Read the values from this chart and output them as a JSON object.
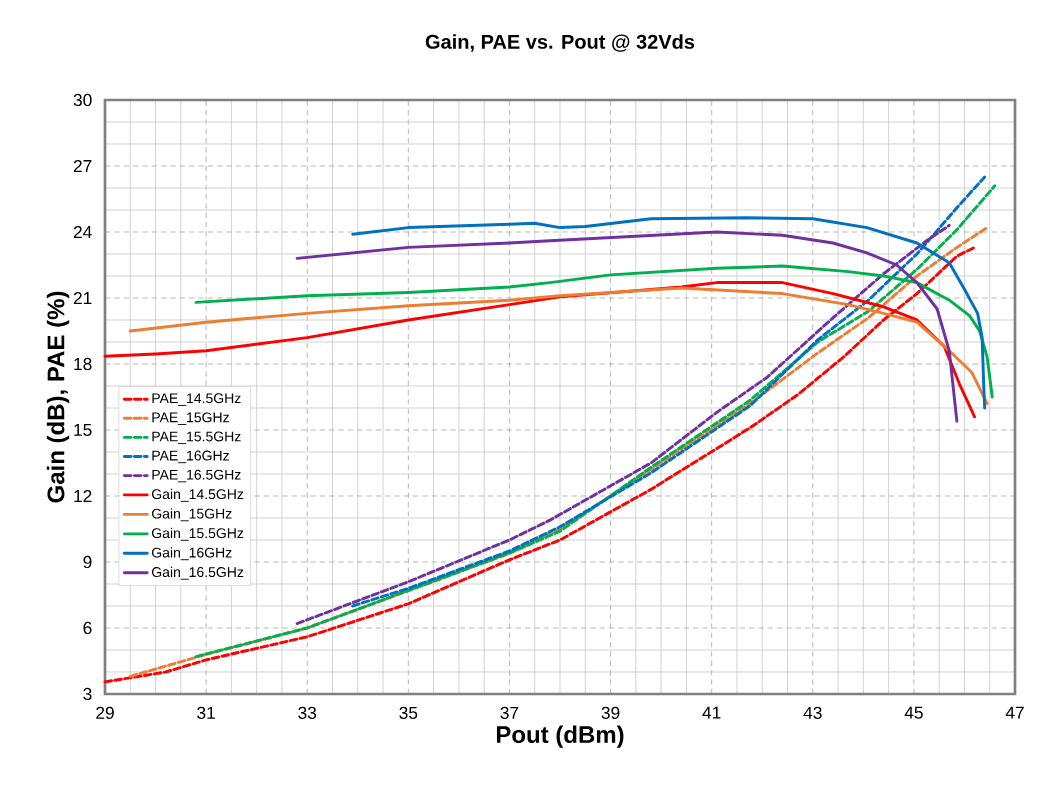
{
  "chart_data": {
    "type": "line",
    "title": "Gain, PAE vs. Pout @ 32Vds",
    "xlabel": "Pout (dBm)",
    "ylabel": "Gain (dB),  PAE (%)",
    "xlim": [
      29,
      47
    ],
    "ylim": [
      3,
      30
    ],
    "xticks": [
      29,
      31,
      33,
      35,
      37,
      39,
      41,
      43,
      45,
      47
    ],
    "yticks": [
      3,
      6,
      9,
      12,
      15,
      18,
      21,
      24,
      27,
      30
    ],
    "grid": true,
    "legend": "left",
    "series": [
      {
        "name": "PAE_14.5GHz",
        "color": "#ff0000",
        "line_style": "dashed",
        "x": [
          29,
          30.2,
          31,
          33,
          35,
          37,
          38,
          39.8,
          41.2,
          41.76,
          42.7,
          43.6,
          44.4,
          45.06,
          45.85,
          46.2
        ],
        "values": [
          3.55,
          4.0,
          4.55,
          5.6,
          7.1,
          9.1,
          10.0,
          12.3,
          14.3,
          15.1,
          16.6,
          18.3,
          20.0,
          21.2,
          22.9,
          23.3
        ]
      },
      {
        "name": "PAE_15GHz",
        "color": "#ed7d31",
        "line_style": "dashed",
        "x": [
          29.5,
          31,
          33,
          35,
          37,
          38,
          39.8,
          41.76,
          43.1,
          44.1,
          45.06,
          45.85,
          46.45
        ],
        "values": [
          3.8,
          4.8,
          6.0,
          7.7,
          9.4,
          10.5,
          13.2,
          16.2,
          18.5,
          20.1,
          22.0,
          23.3,
          24.2
        ]
      },
      {
        "name": "PAE_15.5GHz",
        "color": "#00b050",
        "line_style": "dashed",
        "x": [
          30.8,
          33,
          35,
          37,
          38,
          39.8,
          41.76,
          43.1,
          44.1,
          45.06,
          45.85,
          46.6
        ],
        "values": [
          4.7,
          6.0,
          7.7,
          9.4,
          10.4,
          13.3,
          16.35,
          19.0,
          20.4,
          22.3,
          24.1,
          26.1
        ]
      },
      {
        "name": "PAE_16GHz",
        "color": "#0070c0",
        "line_style": "dashed",
        "x": [
          33.9,
          35,
          37,
          38,
          39.8,
          41.76,
          43.1,
          44.1,
          45.06,
          45.85,
          46.4
        ],
        "values": [
          7.0,
          7.8,
          9.5,
          10.6,
          13.05,
          16.1,
          19.1,
          20.9,
          23.0,
          25.1,
          26.5
        ]
      },
      {
        "name": "PAE_16.5GHz",
        "color": "#7030a0",
        "line_style": "dashed",
        "x": [
          32.8,
          35,
          37,
          37.8,
          39.8,
          41.1,
          42.1,
          43.4,
          44.4,
          45.25,
          45.7
        ],
        "values": [
          6.2,
          8.1,
          10.0,
          10.9,
          13.5,
          15.8,
          17.4,
          20.1,
          22.1,
          23.6,
          24.3
        ]
      },
      {
        "name": "Gain_14.5GHz",
        "color": "#ff0000",
        "line_style": "solid",
        "x": [
          29,
          30,
          31,
          33,
          35,
          37,
          38,
          40.4,
          41.1,
          42.4,
          43.4,
          44.4,
          45.06,
          45.6,
          45.9,
          46.2
        ],
        "values": [
          18.35,
          18.45,
          18.6,
          19.2,
          20.0,
          20.7,
          21.05,
          21.5,
          21.7,
          21.7,
          21.2,
          20.6,
          20.0,
          18.8,
          17.1,
          15.6
        ]
      },
      {
        "name": "Gain_15GHz",
        "color": "#ed7d31",
        "line_style": "solid",
        "x": [
          29.5,
          31,
          33,
          35,
          37,
          38,
          40.4,
          42.4,
          43.7,
          44.4,
          45.06,
          45.7,
          46.15,
          46.45
        ],
        "values": [
          19.5,
          19.9,
          20.3,
          20.65,
          20.9,
          21.1,
          21.45,
          21.2,
          20.7,
          20.3,
          19.9,
          18.6,
          17.6,
          16.2
        ]
      },
      {
        "name": "Gain_15.5GHz",
        "color": "#00b050",
        "line_style": "solid",
        "x": [
          30.8,
          33,
          35,
          37,
          37.8,
          39,
          41.1,
          42.4,
          43.7,
          44.4,
          45.06,
          45.7,
          46.1,
          46.3,
          46.45,
          46.55
        ],
        "values": [
          20.8,
          21.1,
          21.25,
          21.5,
          21.7,
          22.05,
          22.35,
          22.45,
          22.2,
          22.0,
          21.7,
          20.9,
          20.2,
          19.5,
          18.3,
          16.5
        ]
      },
      {
        "name": "Gain_16GHz",
        "color": "#0070c0",
        "line_style": "solid",
        "x": [
          33.9,
          35,
          37,
          37.5,
          38,
          38.5,
          39.8,
          41.7,
          43.0,
          44.07,
          45.06,
          45.7,
          46.0,
          46.26,
          46.35,
          46.38,
          46.4
        ],
        "values": [
          23.9,
          24.2,
          24.35,
          24.4,
          24.2,
          24.25,
          24.6,
          24.65,
          24.6,
          24.2,
          23.5,
          22.6,
          21.4,
          20.3,
          19.2,
          17.1,
          16.0
        ]
      },
      {
        "name": "Gain_16.5GHz",
        "color": "#7030a0",
        "line_style": "solid",
        "x": [
          32.8,
          35,
          37,
          37.8,
          41.1,
          42.4,
          43.4,
          44.07,
          44.66,
          45.06,
          45.46,
          45.7,
          45.85
        ],
        "values": [
          22.8,
          23.3,
          23.5,
          23.6,
          24.0,
          23.85,
          23.5,
          23.05,
          22.5,
          21.7,
          20.5,
          18.6,
          15.4
        ]
      }
    ]
  }
}
